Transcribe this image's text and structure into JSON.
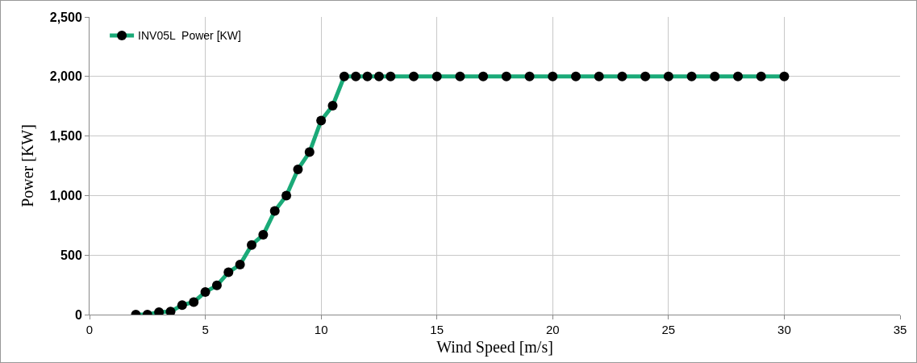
{
  "chart_data": {
    "type": "line",
    "xlabel": "Wind Speed [m/s]",
    "ylabel": "Power [KW]",
    "x": [
      2,
      2.5,
      3,
      3.5,
      4,
      4.5,
      5,
      5.5,
      6,
      6.5,
      7,
      7.5,
      8,
      8.5,
      9,
      9.5,
      10,
      10.5,
      11,
      11.5,
      12,
      12.5,
      13,
      14,
      15,
      16,
      17,
      18,
      19,
      20,
      21,
      22,
      23,
      24,
      25,
      26,
      27,
      28,
      29,
      30
    ],
    "series": [
      {
        "name": "INV05L  Power [KW]",
        "color": "#1aaa78",
        "values": [
          0,
          0,
          20,
          25,
          80,
          105,
          190,
          245,
          355,
          420,
          585,
          670,
          870,
          1000,
          1220,
          1365,
          1630,
          1755,
          2000,
          2000,
          2000,
          2000,
          2000,
          2000,
          2000,
          2000,
          2000,
          2000,
          2000,
          2000,
          2000,
          2000,
          2000,
          2000,
          2000,
          2000,
          2000,
          2000,
          2000,
          2000
        ]
      }
    ],
    "marker": "circle",
    "line_style": "solid",
    "xlim": [
      0,
      35
    ],
    "xticks": [
      0,
      5,
      10,
      15,
      20,
      25,
      30,
      35
    ],
    "ylim": [
      0,
      2500
    ],
    "yticks": [
      0,
      {
        "value": 500,
        "label": "500"
      },
      {
        "value": 1000,
        "label": "1,000"
      },
      {
        "value": 1500,
        "label": "1,500"
      },
      {
        "value": 2000,
        "label": "2,000"
      },
      {
        "value": 2500,
        "label": "2,500"
      }
    ],
    "grid": true,
    "legend": "top left"
  }
}
